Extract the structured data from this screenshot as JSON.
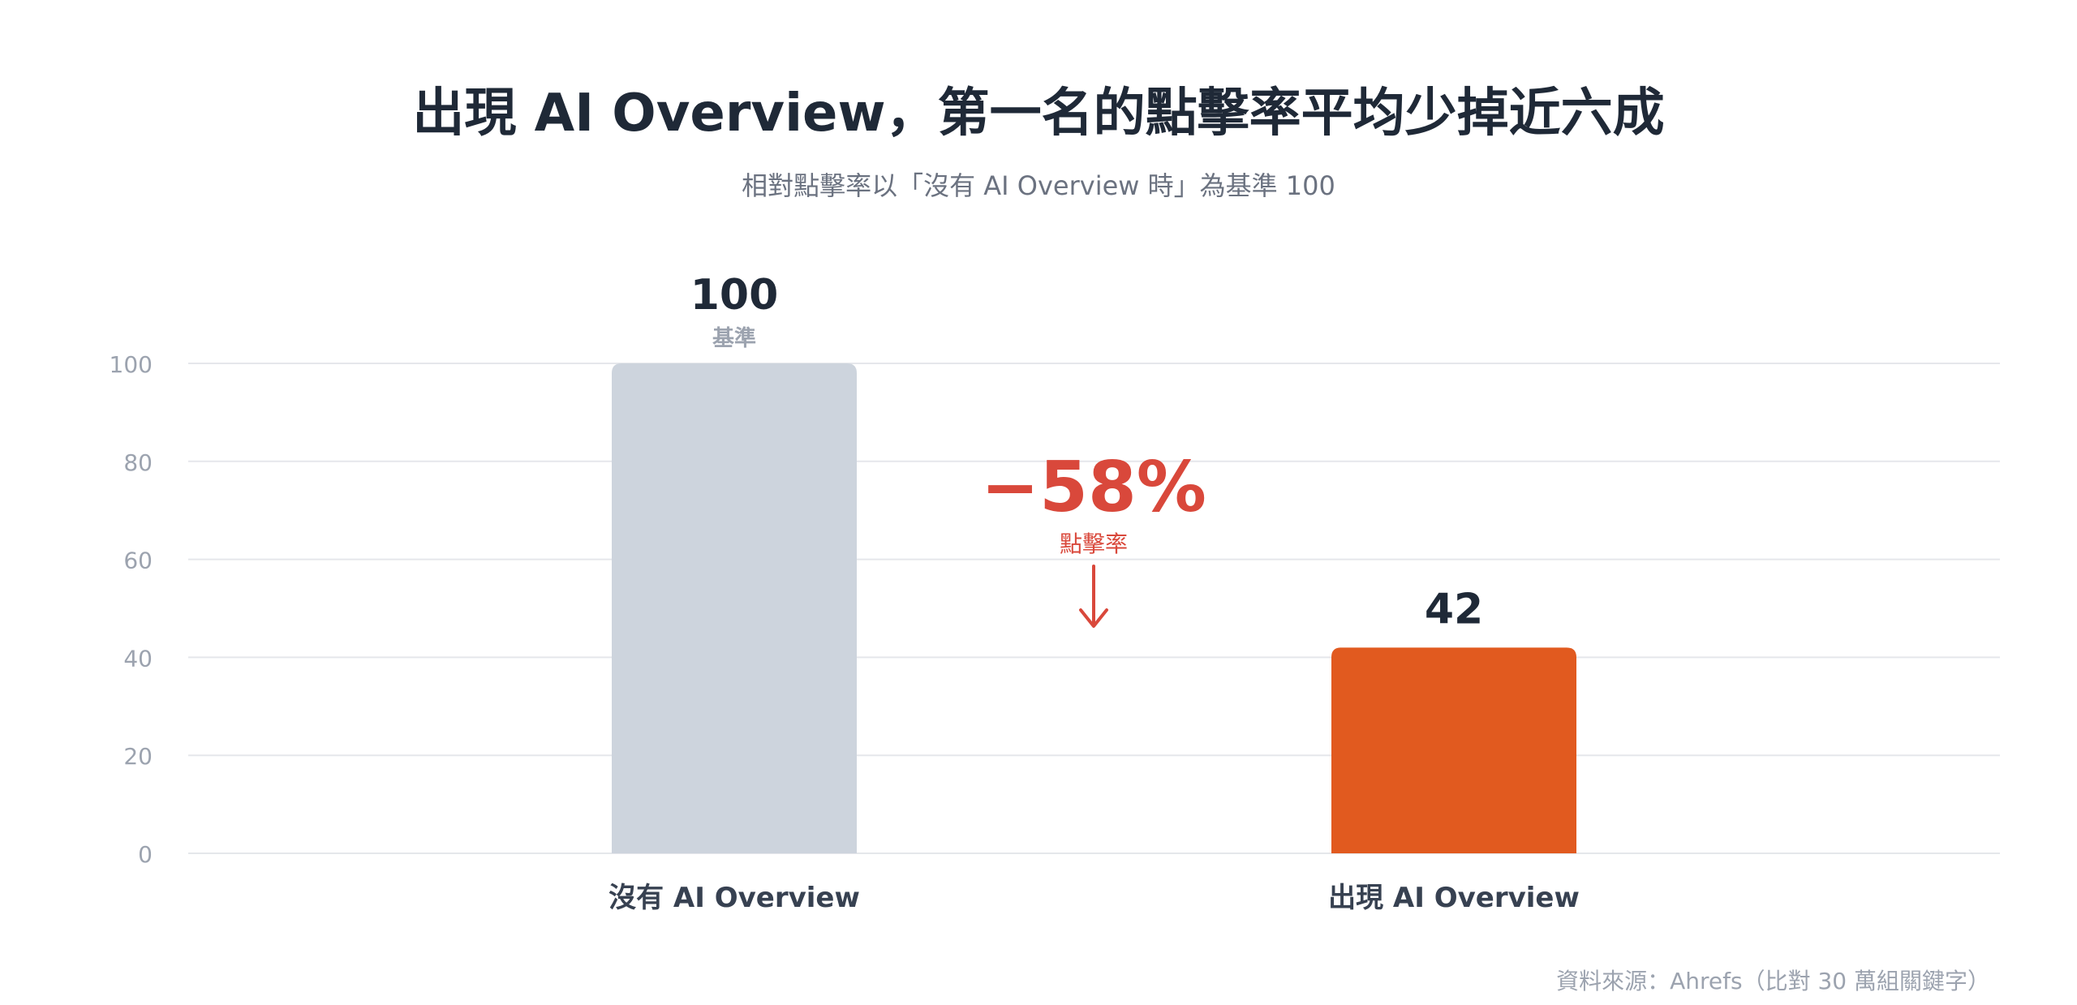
{
  "header": {
    "title": "出現 AI Overview，第一名的點擊率平均少掉近六成",
    "subtitle": "相對點擊率以「沒有 AI Overview 時」為基準 100"
  },
  "chart_data": {
    "type": "bar",
    "title": "出現 AI Overview，第一名的點擊率平均少掉近六成",
    "subtitle": "相對點擊率以「沒有 AI Overview 時」為基準 100",
    "categories": [
      "沒有 AI Overview",
      "出現 AI Overview"
    ],
    "values": [
      100,
      42
    ],
    "value_labels": [
      "100",
      "42"
    ],
    "bar_notes": [
      "基準",
      ""
    ],
    "bar_colors": [
      "#cdd4dd",
      "#e15a1f"
    ],
    "yticks": [
      0,
      20,
      40,
      60,
      80,
      100
    ],
    "ylim": [
      0,
      100
    ],
    "grid": true,
    "annotation": {
      "text": "−58%",
      "sub": "點擊率",
      "color": "#d9483b"
    }
  },
  "footer": {
    "source": "資料來源：Ahrefs（比對 30 萬組關鍵字）"
  }
}
